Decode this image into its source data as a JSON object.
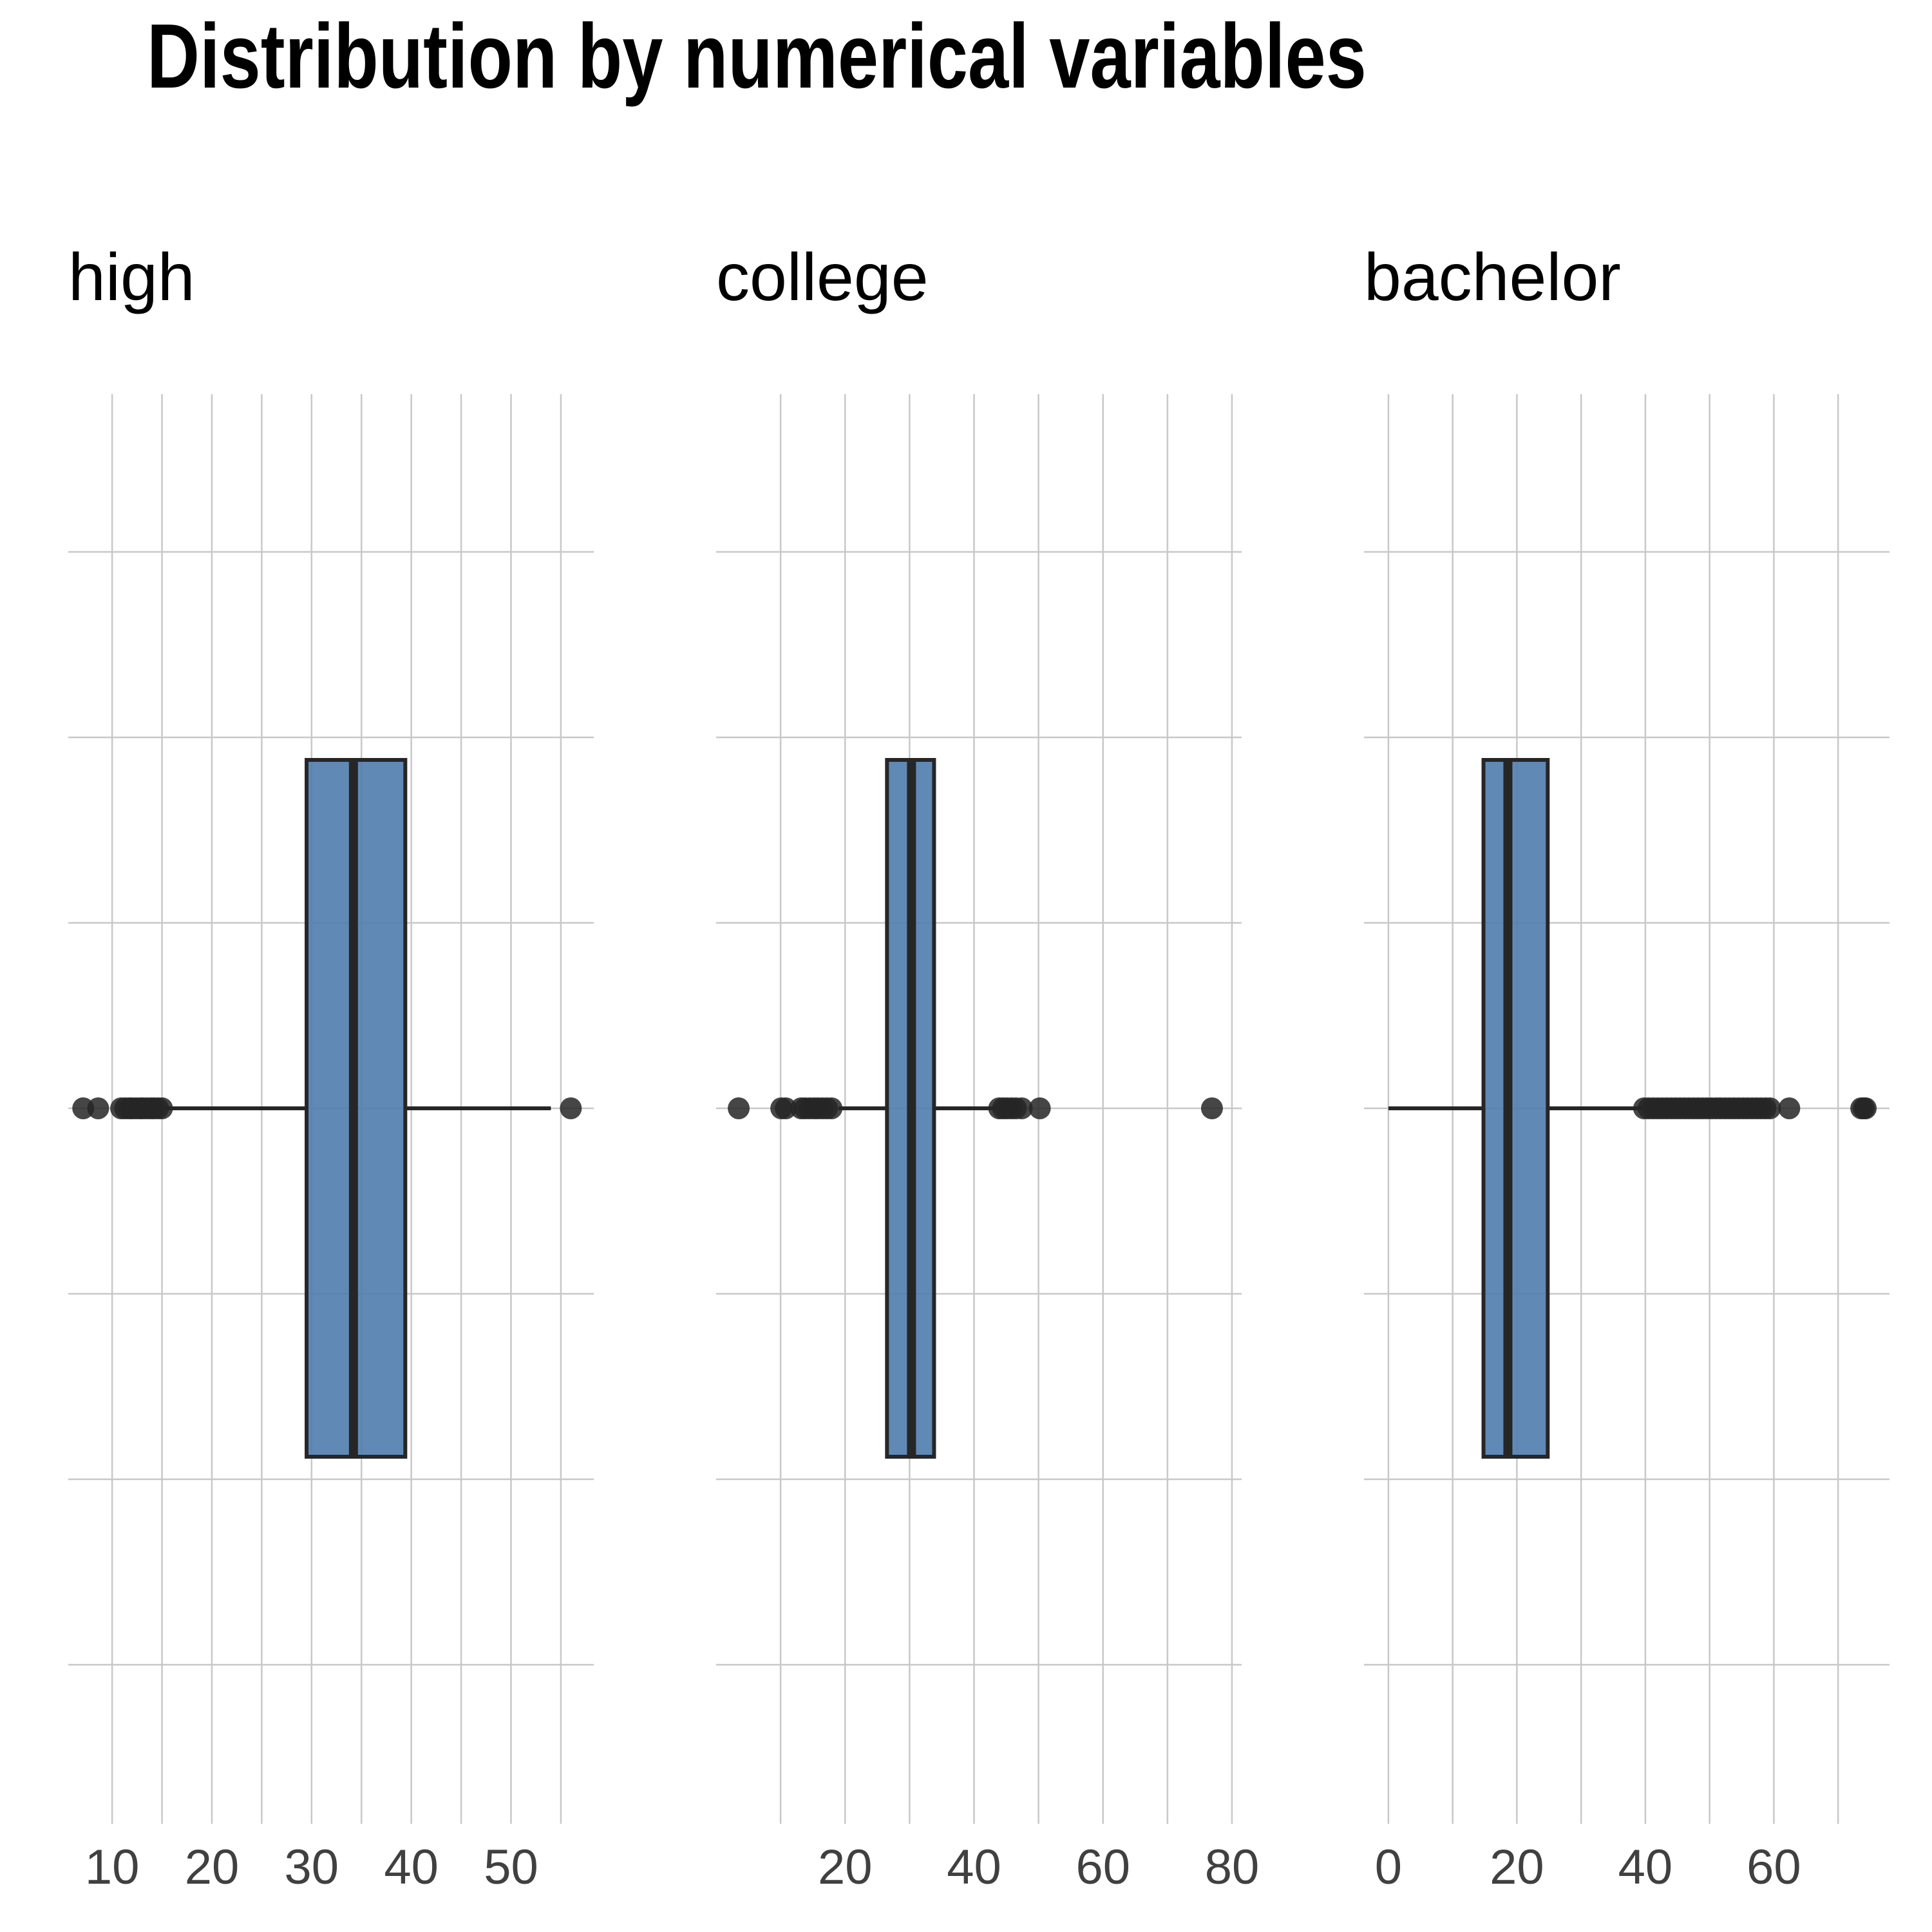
{
  "title": "Distribution by numerical variables",
  "colors": {
    "box_fill": "#4f7cad",
    "box_stroke": "#262626",
    "grid": "#c8c8c8",
    "tick_label": "#404040",
    "outlier": "#262626"
  },
  "chart_data": [
    {
      "type": "boxplot",
      "title": "high",
      "xlim": [
        5.6,
        58.3
      ],
      "xticks": [
        10,
        20,
        30,
        40,
        50
      ],
      "xtick_labels": [
        "10",
        "20",
        "30",
        "40",
        "50"
      ],
      "minor_xticks": [
        15,
        25,
        35,
        45,
        55
      ],
      "grid": true,
      "stats": {
        "whisker_low": 15.3,
        "q1": 29.5,
        "median": 34.2,
        "q3": 39.4,
        "whisker_high": 54.0
      },
      "outliers": [
        7.1,
        8.6,
        10.9,
        11.3,
        11.7,
        12.0,
        12.4,
        12.8,
        13.1,
        13.5,
        13.9,
        14.2,
        14.6,
        15.0,
        56.0
      ]
    },
    {
      "type": "boxplot",
      "title": "college",
      "xlim": [
        0,
        81.5
      ],
      "xticks": [
        20,
        40,
        60,
        80
      ],
      "xtick_labels": [
        "20",
        "40",
        "60",
        "80"
      ],
      "minor_xticks": [
        10,
        30,
        50,
        70
      ],
      "grid": true,
      "stats": {
        "whisker_low": 19.0,
        "q1": 26.5,
        "median": 30.3,
        "q3": 33.8,
        "whisker_high": 43.5
      },
      "outliers": [
        3.5,
        10.1,
        10.8,
        13.2,
        13.8,
        14.5,
        15.2,
        15.8,
        16.5,
        17.2,
        17.9,
        43.9,
        44.5,
        45.1,
        45.8,
        46.5,
        47.4,
        50.2,
        76.9
      ]
    },
    {
      "type": "boxplot",
      "title": "bachelor",
      "xlim": [
        -3.8,
        78.0
      ],
      "xticks": [
        0,
        20,
        40,
        60
      ],
      "xtick_labels": [
        "0",
        "20",
        "40",
        "60"
      ],
      "minor_xticks": [
        10,
        30,
        50,
        70
      ],
      "grid": true,
      "stats": {
        "whisker_low": 0.0,
        "q1": 14.8,
        "median": 18.6,
        "q3": 24.8,
        "whisker_high": 39.5
      },
      "outliers": [
        39.8,
        40.5,
        41.2,
        41.9,
        42.6,
        43.3,
        44.0,
        44.7,
        45.4,
        46.1,
        46.8,
        47.5,
        48.2,
        48.9,
        49.6,
        50.3,
        51.0,
        51.7,
        52.4,
        53.1,
        53.8,
        54.5,
        55.2,
        55.9,
        56.6,
        57.3,
        58.0,
        58.7,
        59.4,
        62.4,
        73.6,
        74.0,
        74.3
      ]
    }
  ]
}
